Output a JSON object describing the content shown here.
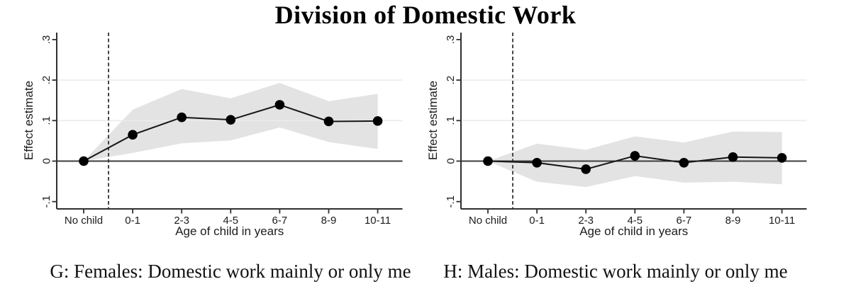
{
  "title": "Division of Domestic Work",
  "colors": {
    "band": "#e3e3e3",
    "grid": "#ebebeb",
    "line": "#161616",
    "marker": "#000000",
    "axis": "#2f2f2f",
    "zero_line": "#3d3d3d",
    "dashed_line": "#333333",
    "text": "#1c1c1c"
  },
  "chart_data": [
    {
      "type": "line",
      "panel_label": "G",
      "caption": "G: Females: Domestic work mainly or only me",
      "xlabel": "Age of child in years",
      "ylabel": "Effect estimate",
      "categories": [
        "No child",
        "0-1",
        "2-3",
        "4-5",
        "6-7",
        "8-9",
        "10-11"
      ],
      "yticks": [
        -0.1,
        0,
        0.1,
        0.2,
        0.3
      ],
      "ytick_labels": [
        "-.1",
        "0",
        ".1",
        ".2",
        ".3"
      ],
      "ylim": [
        -0.12,
        0.31
      ],
      "gridlines_at": [
        0.1,
        0.2
      ],
      "zero_line_at": 0,
      "dashed_vline_between_categories": [
        "No child",
        "0-1"
      ],
      "series": [
        {
          "name": "Effect estimate",
          "values": [
            0,
            0.065,
            0.108,
            0.102,
            0.139,
            0.098,
            0.099
          ]
        }
      ],
      "ci_band": {
        "upper": [
          0,
          0.127,
          0.178,
          0.155,
          0.193,
          0.148,
          0.166
        ],
        "lower": [
          0,
          0.02,
          0.044,
          0.051,
          0.083,
          0.047,
          0.03
        ]
      }
    },
    {
      "type": "line",
      "panel_label": "H",
      "caption": "H: Males: Domestic work mainly or only me",
      "xlabel": "Age of child in years",
      "ylabel": "Effect estimate",
      "categories": [
        "No child",
        "0-1",
        "2-3",
        "4-5",
        "6-7",
        "8-9",
        "10-11"
      ],
      "yticks": [
        -0.1,
        0,
        0.1,
        0.2,
        0.3
      ],
      "ytick_labels": [
        "-.1",
        "0",
        ".1",
        ".2",
        ".3"
      ],
      "ylim": [
        -0.12,
        0.31
      ],
      "gridlines_at": [
        0.1,
        0.2
      ],
      "zero_line_at": 0,
      "dashed_vline_between_categories": [
        "No child",
        "0-1"
      ],
      "series": [
        {
          "name": "Effect estimate",
          "values": [
            0,
            -0.004,
            -0.02,
            0.013,
            -0.004,
            0.01,
            0.008
          ]
        }
      ],
      "ci_band": {
        "upper": [
          0,
          0.043,
          0.028,
          0.061,
          0.046,
          0.073,
          0.072
        ],
        "lower": [
          0,
          -0.051,
          -0.064,
          -0.037,
          -0.053,
          -0.051,
          -0.057
        ]
      }
    }
  ]
}
